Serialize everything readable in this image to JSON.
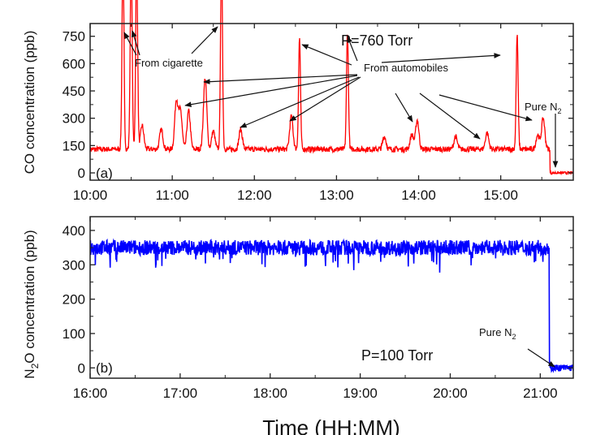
{
  "chart_data": [
    {
      "type": "line",
      "panel_label": "(a)",
      "ylabel": "CO concentration (ppb)",
      "xlabel": "",
      "x_tick_labels": [
        "10:00",
        "11:00",
        "12:00",
        "13:00",
        "14:00",
        "15:00"
      ],
      "y_ticks": [
        0,
        150,
        300,
        450,
        600,
        750
      ],
      "xlim": [
        "10:00",
        "15:53"
      ],
      "ylim": [
        -40,
        820
      ],
      "series_color": "#ff0000",
      "baseline_ppb": 130,
      "baseline_noise_ppb": 15,
      "pure_n2_start": "15:36",
      "pure_n2_level_ppb": 0,
      "peaks": [
        {
          "time": "10:24",
          "value": 1200
        },
        {
          "time": "10:30",
          "value": 1200
        },
        {
          "time": "10:34",
          "value": 1200
        },
        {
          "time": "10:38",
          "value": 260
        },
        {
          "time": "10:52",
          "value": 240
        },
        {
          "time": "11:03",
          "value": 400
        },
        {
          "time": "11:06",
          "value": 340
        },
        {
          "time": "11:12",
          "value": 340
        },
        {
          "time": "11:24",
          "value": 520
        },
        {
          "time": "11:30",
          "value": 230
        },
        {
          "time": "11:36",
          "value": 1200
        },
        {
          "time": "11:50",
          "value": 240
        },
        {
          "time": "12:27",
          "value": 310
        },
        {
          "time": "12:33",
          "value": 740
        },
        {
          "time": "13:08",
          "value": 770
        },
        {
          "time": "13:35",
          "value": 200
        },
        {
          "time": "13:55",
          "value": 210
        },
        {
          "time": "13:59",
          "value": 290
        },
        {
          "time": "14:27",
          "value": 200
        },
        {
          "time": "14:50",
          "value": 220
        },
        {
          "time": "15:12",
          "value": 760
        },
        {
          "time": "15:27",
          "value": 210
        },
        {
          "time": "15:31",
          "value": 300
        }
      ],
      "annotations": {
        "pressure": "P=760 Torr",
        "cigarette": "From cigarette",
        "automobiles": "From automobiles",
        "pure_n2": "Pure N",
        "pure_n2_sub": "2"
      }
    },
    {
      "type": "line",
      "panel_label": "(b)",
      "ylabel": "N",
      "ylabel_sub": "2",
      "ylabel_rest": "O concentration (ppb)",
      "xlabel": "Time (HH:MM)",
      "x_tick_labels": [
        "16:00",
        "17:00",
        "18:00",
        "19:00",
        "20:00",
        "21:00"
      ],
      "y_ticks": [
        0,
        100,
        200,
        300,
        400
      ],
      "xlim": [
        "16:00",
        "21:22"
      ],
      "ylim": [
        -30,
        440
      ],
      "series_color": "#0000ff",
      "baseline_ppb": 350,
      "baseline_noise_ppb": 22,
      "pure_n2_start": "21:06",
      "pure_n2_level_ppb": 0,
      "annotations": {
        "pressure": "P=100 Torr",
        "pure_n2": "Pure N",
        "pure_n2_sub": "2"
      }
    }
  ]
}
